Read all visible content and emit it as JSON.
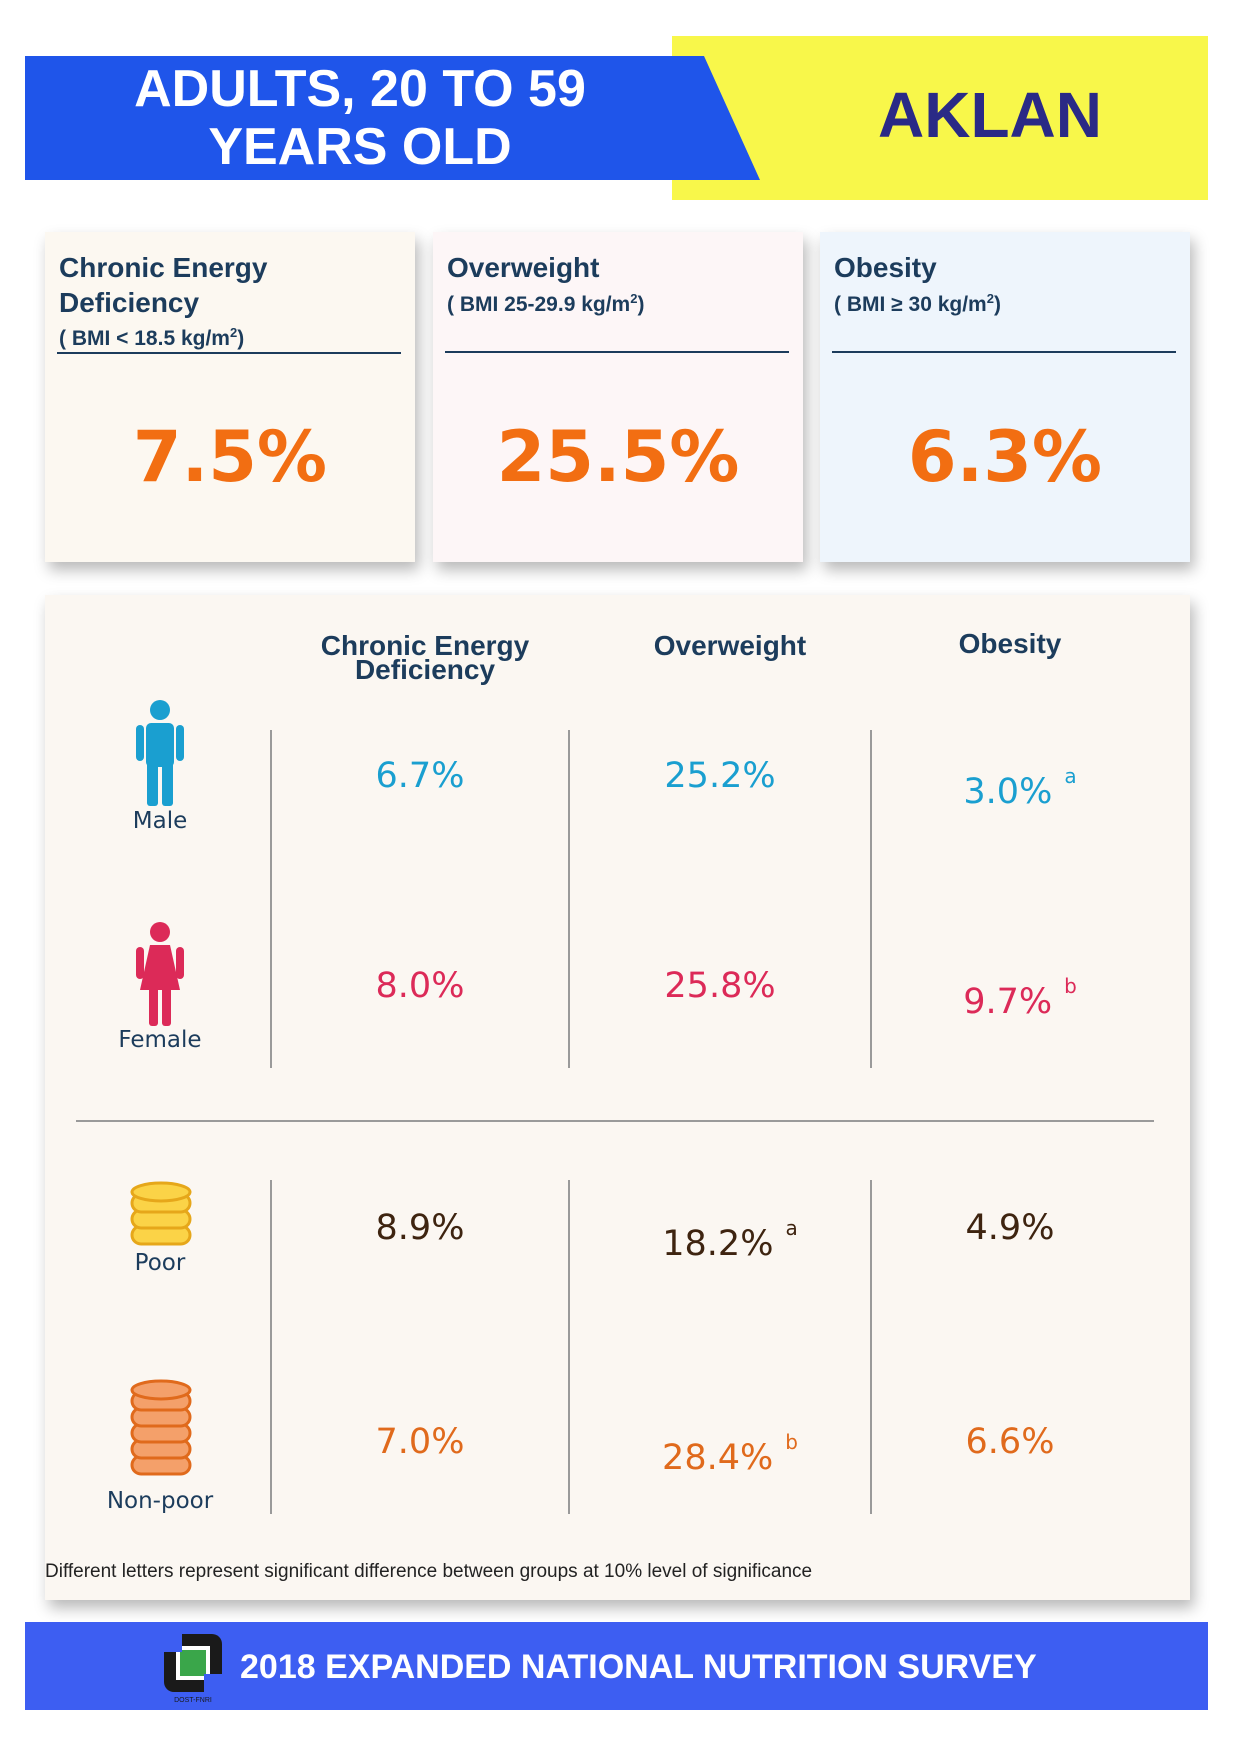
{
  "header": {
    "title_line1": "ADULTS, 20 TO 59",
    "title_line2": "YEARS OLD",
    "region": "AKLAN",
    "colors": {
      "blue": "#1f55ea",
      "yellow": "#f8f74a"
    }
  },
  "summary_cards": [
    {
      "title_line1": "Chronic Energy",
      "title_line2": "Deficiency",
      "criteria": "( BMI < 18.5 kg/m",
      "criteria_sup": "2",
      "criteria_end": ")",
      "value": "7.5%"
    },
    {
      "title_line1": "Overweight",
      "title_line2": "",
      "criteria": "( BMI 25-29.9 kg/m",
      "criteria_sup": "2",
      "criteria_end": ")",
      "value": "25.5%"
    },
    {
      "title_line1": "Obesity",
      "title_line2": "",
      "criteria": "( BMI ≥ 30 kg/m",
      "criteria_sup": "2",
      "criteria_end": ")",
      "value": "6.3%"
    }
  ],
  "table": {
    "columns": [
      {
        "line1": "Chronic Energy",
        "line2": "Deficiency"
      },
      {
        "line1": "Overweight",
        "line2": ""
      },
      {
        "line1": "Obesity",
        "line2": ""
      }
    ],
    "rows": [
      {
        "label": "Male",
        "icon": "male-icon",
        "values": [
          "6.7%",
          "25.2%",
          "3.0%"
        ],
        "sups": [
          "",
          "",
          "a"
        ]
      },
      {
        "label": "Female",
        "icon": "female-icon",
        "values": [
          "8.0%",
          "25.8%",
          "9.7%"
        ],
        "sups": [
          "",
          "",
          "b"
        ]
      },
      {
        "label": "Poor",
        "icon": "coins-stack-small-icon",
        "values": [
          "8.9%",
          "18.2%",
          "4.9%"
        ],
        "sups": [
          "",
          "a",
          ""
        ]
      },
      {
        "label": "Non-poor",
        "icon": "coins-stack-large-icon",
        "values": [
          "7.0%",
          "28.4%",
          "6.6%"
        ],
        "sups": [
          "",
          "b",
          ""
        ]
      }
    ],
    "footnote": "Different letters represent significant difference between groups at 10% level of significance"
  },
  "footer": {
    "title": "2018 EXPANDED NATIONAL NUTRITION SURVEY",
    "logo_text": "DOST-FNRI",
    "logo_icon": "fnri-logo-icon"
  }
}
